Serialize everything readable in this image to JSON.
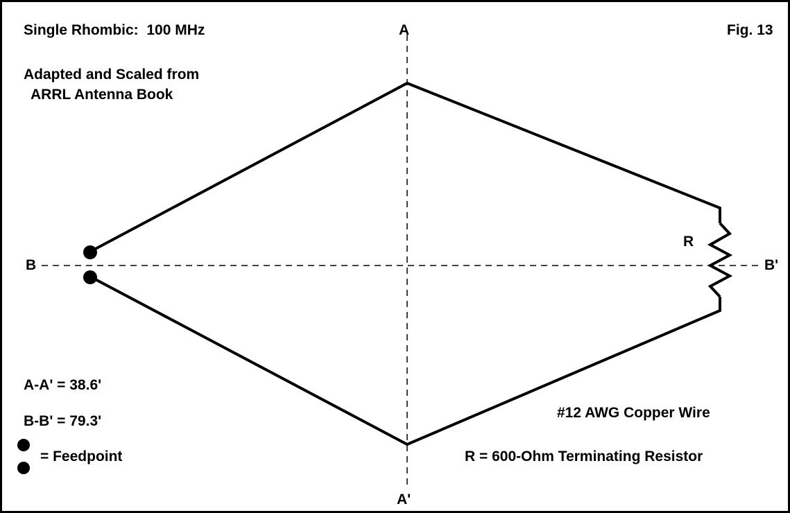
{
  "title": "Single Rhombic:  100 MHz",
  "fig_label": "Fig. 13",
  "source_line1": "Adapted and Scaled from",
  "source_line2": "ARRL Antenna Book",
  "axis_labels": {
    "a_top": "A",
    "a_bottom": "A'",
    "b_left": "B",
    "b_right": "B'"
  },
  "resistor_label": "R",
  "dimensions": {
    "aa": "A-A' = 38.6'",
    "bb": "B-B' = 79.3'"
  },
  "feedpoint_label": "= Feedpoint",
  "wire_note": "#12 AWG Copper Wire",
  "resistor_note": "R = 600-Ohm Terminating Resistor",
  "colors": {
    "background": "#FFFFCC",
    "panel": "#FFFFFF",
    "ink": "#000000"
  }
}
